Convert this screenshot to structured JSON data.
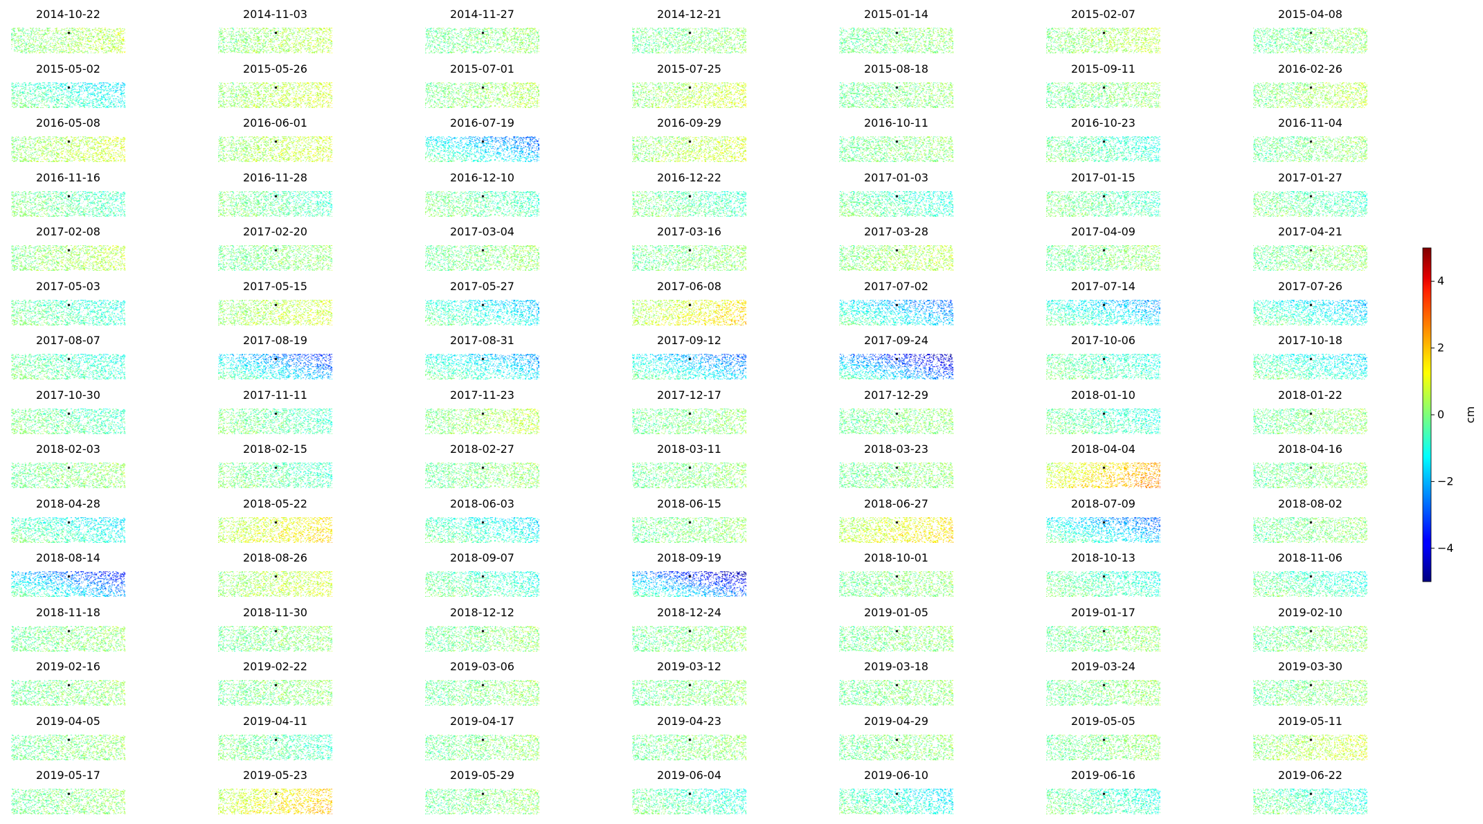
{
  "chart_data": {
    "type": "heatmap",
    "panel_titles": [
      "2014-10-22",
      "2014-11-03",
      "2014-11-27",
      "2014-12-21",
      "2015-01-14",
      "2015-02-07",
      "2015-04-08",
      "2015-05-02",
      "2015-05-26",
      "2015-07-01",
      "2015-07-25",
      "2015-08-18",
      "2015-09-11",
      "2016-02-26",
      "2016-05-08",
      "2016-06-01",
      "2016-07-19",
      "2016-09-29",
      "2016-10-11",
      "2016-10-23",
      "2016-11-04",
      "2016-11-16",
      "2016-11-28",
      "2016-12-10",
      "2016-12-22",
      "2017-01-03",
      "2017-01-15",
      "2017-01-27",
      "2017-02-08",
      "2017-02-20",
      "2017-03-04",
      "2017-03-16",
      "2017-03-28",
      "2017-04-09",
      "2017-04-21",
      "2017-05-03",
      "2017-05-15",
      "2017-05-27",
      "2017-06-08",
      "2017-07-02",
      "2017-07-14",
      "2017-07-26",
      "2017-08-07",
      "2017-08-19",
      "2017-08-31",
      "2017-09-12",
      "2017-09-24",
      "2017-10-06",
      "2017-10-18",
      "2017-10-30",
      "2017-11-11",
      "2017-11-23",
      "2017-12-17",
      "2017-12-29",
      "2018-01-10",
      "2018-01-22",
      "2018-02-03",
      "2018-02-15",
      "2018-02-27",
      "2018-03-11",
      "2018-03-23",
      "2018-04-04",
      "2018-04-16",
      "2018-04-28",
      "2018-05-22",
      "2018-06-03",
      "2018-06-15",
      "2018-06-27",
      "2018-07-09",
      "2018-08-02",
      "2018-08-14",
      "2018-08-26",
      "2018-09-07",
      "2018-09-19",
      "2018-10-01",
      "2018-10-13",
      "2018-11-06",
      "2018-11-18",
      "2018-11-30",
      "2018-12-12",
      "2018-12-24",
      "2019-01-05",
      "2019-01-17",
      "2019-02-10",
      "2019-02-16",
      "2019-02-22",
      "2019-03-06",
      "2019-03-12",
      "2019-03-18",
      "2019-03-24",
      "2019-03-30",
      "2019-04-05",
      "2019-04-11",
      "2019-04-17",
      "2019-04-23",
      "2019-04-29",
      "2019-05-05",
      "2019-05-11",
      "2019-05-17",
      "2019-05-23",
      "2019-05-29",
      "2019-06-04",
      "2019-06-10",
      "2019-06-16",
      "2019-06-22"
    ],
    "panel_means_cm": [
      0.3,
      0.3,
      0,
      0,
      0,
      0.3,
      0,
      -0.8,
      0.5,
      0.2,
      0.5,
      0,
      0,
      0.3,
      0.5,
      0.5,
      -1.5,
      0.5,
      0,
      -0.5,
      0,
      -0.3,
      -0.3,
      -0.3,
      -0.3,
      -0.5,
      -0.3,
      -0.3,
      0.3,
      0,
      0,
      0,
      0.3,
      0,
      0,
      -0.5,
      0.5,
      -1.0,
      1.0,
      -1.5,
      -1.2,
      -1.0,
      -0.5,
      -1.8,
      -1.2,
      -1.5,
      -2.5,
      -0.5,
      -0.8,
      -0.3,
      -0.3,
      0.3,
      0,
      0,
      -0.5,
      0,
      0,
      -0.3,
      0,
      0,
      0,
      1.5,
      0,
      -0.8,
      1.0,
      -0.8,
      0,
      1.0,
      -1.5,
      0,
      -2.0,
      0.5,
      -0.5,
      -2.5,
      0,
      -0.5,
      -0.5,
      0,
      0,
      0,
      0,
      0,
      0,
      0,
      0,
      0,
      0,
      0,
      0,
      0,
      0,
      0,
      -0.3,
      0,
      0,
      0,
      0,
      0.5,
      0,
      1.2,
      0,
      -0.5,
      -0.8,
      -0.5,
      -0.5
    ],
    "reference_point": "black dot at panel center",
    "colormap": "jet",
    "colorbar": {
      "label": "cm",
      "range": [
        -5,
        5
      ],
      "ticks": [
        4,
        2,
        0,
        -2,
        -4
      ],
      "tick_labels": [
        "4",
        "2",
        "0",
        "−2",
        "−4"
      ]
    },
    "axes": "off",
    "grid": false
  }
}
